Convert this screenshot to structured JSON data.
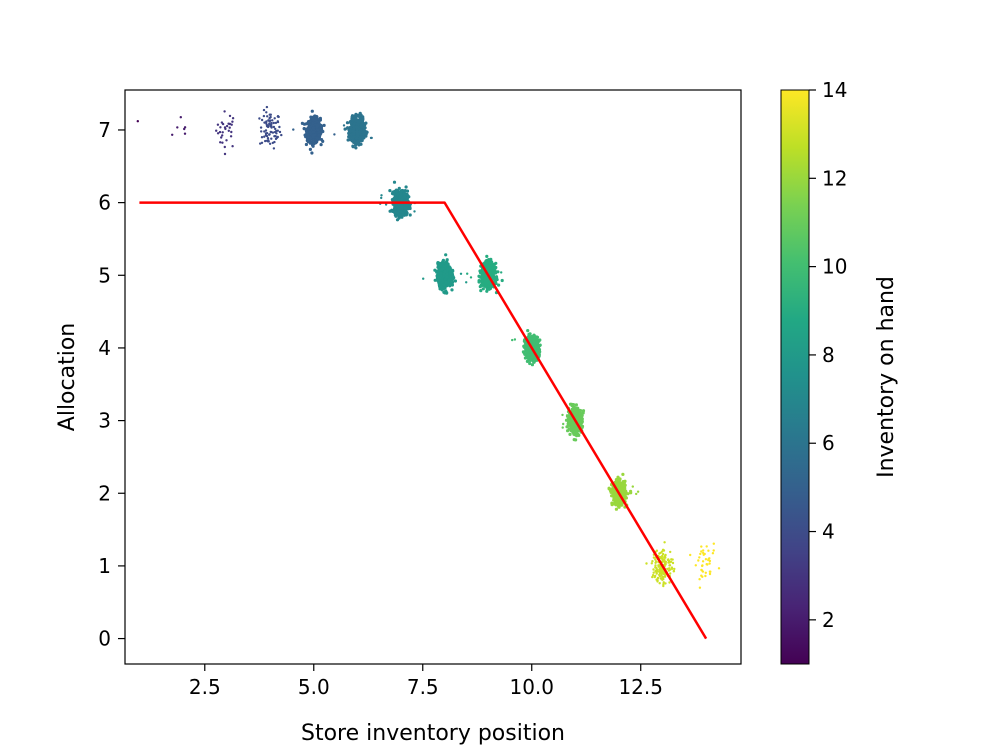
{
  "chart_data": {
    "type": "scatter",
    "title": "",
    "xlabel": "Store inventory position",
    "ylabel": "Allocation",
    "xlim": [
      0.67,
      14.8
    ],
    "ylim": [
      -0.35,
      7.55
    ],
    "xticks": [
      2.5,
      5.0,
      7.5,
      10.0,
      12.5
    ],
    "xtick_labels": [
      "2.5",
      "5.0",
      "7.5",
      "10.0",
      "12.5"
    ],
    "yticks": [
      0,
      1,
      2,
      3,
      4,
      5,
      6,
      7
    ],
    "ytick_labels": [
      "0",
      "1",
      "2",
      "3",
      "4",
      "5",
      "6",
      "7"
    ],
    "grid": false,
    "colormap": "viridis",
    "colorbar": {
      "label": "Inventory on hand",
      "range": [
        1,
        14
      ],
      "ticks": [
        2,
        4,
        6,
        8,
        10,
        12,
        14
      ],
      "tick_labels": [
        "2",
        "4",
        "6",
        "8",
        "10",
        "12",
        "14"
      ]
    },
    "line": {
      "name": "",
      "color": "#ff0000",
      "x": [
        1,
        8,
        14
      ],
      "y": [
        6,
        6,
        0
      ]
    },
    "scatter_clusters": [
      {
        "x": 1,
        "y": 7,
        "color_value": 1,
        "count": 1
      },
      {
        "x": 2,
        "y": 7,
        "color_value": 2,
        "count": 6
      },
      {
        "x": 3,
        "y": 7,
        "color_value": 3,
        "count": 30
      },
      {
        "x": 4,
        "y": 7,
        "color_value": 4,
        "count": 80
      },
      {
        "x": 5,
        "y": 7,
        "color_value": 5,
        "count": 600
      },
      {
        "x": 6,
        "y": 7,
        "color_value": 6,
        "count": 700
      },
      {
        "x": 7,
        "y": 6,
        "color_value": 7,
        "count": 700
      },
      {
        "x": 8,
        "y": 5,
        "color_value": 8,
        "count": 700
      },
      {
        "x": 9,
        "y": 5,
        "color_value": 9,
        "count": 600
      },
      {
        "x": 10,
        "y": 4,
        "color_value": 10,
        "count": 600
      },
      {
        "x": 11,
        "y": 3,
        "color_value": 11,
        "count": 500
      },
      {
        "x": 12,
        "y": 2,
        "color_value": 12,
        "count": 450
      },
      {
        "x": 13,
        "y": 1,
        "color_value": 13,
        "count": 150
      },
      {
        "x": 14,
        "y": 1,
        "color_value": 14,
        "count": 40
      }
    ]
  }
}
